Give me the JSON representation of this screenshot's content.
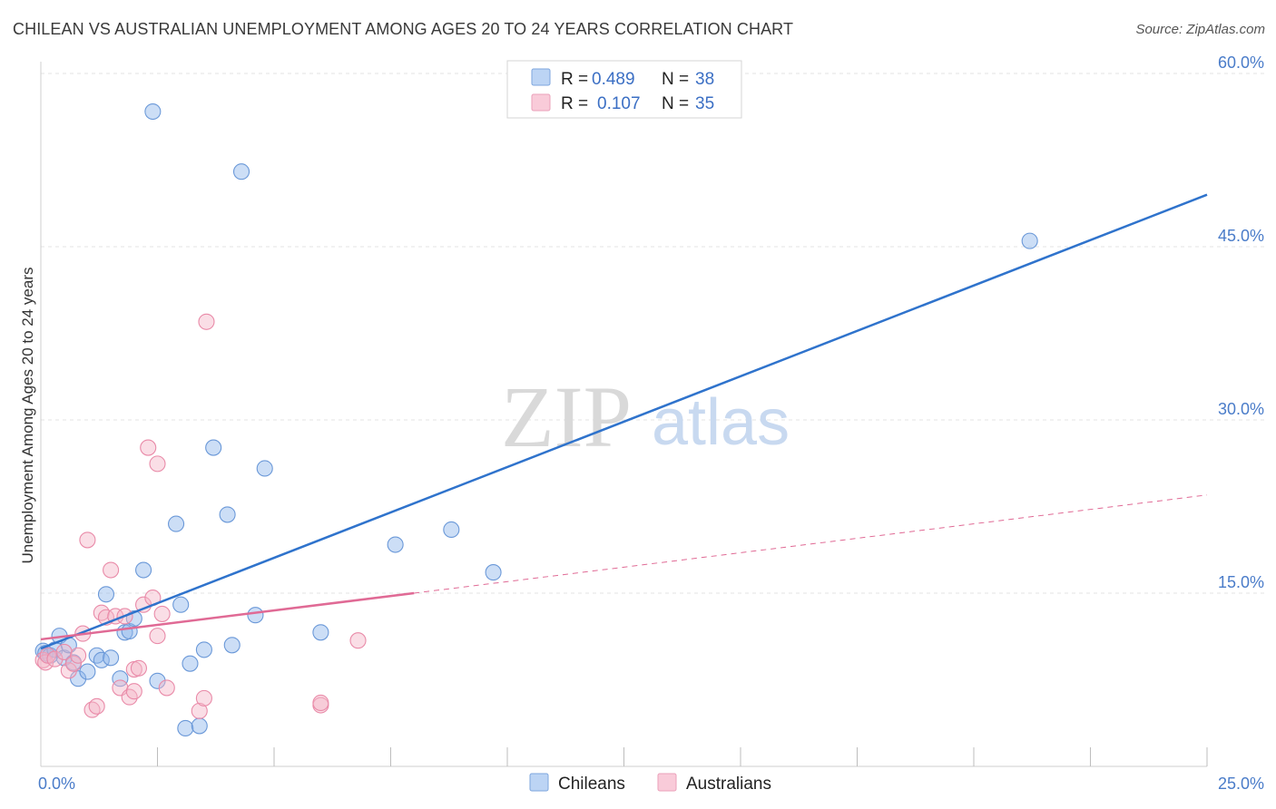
{
  "title": "CHILEAN VS AUSTRALIAN UNEMPLOYMENT AMONG AGES 20 TO 24 YEARS CORRELATION CHART",
  "source": "Source: ZipAtlas.com",
  "watermark": {
    "zip": "ZIP",
    "atlas": "atlas"
  },
  "legend": {
    "r_label": "R =",
    "n_label": "N =",
    "rows": [
      {
        "r": "0.489",
        "n": "38"
      },
      {
        "r": "0.107",
        "n": "35"
      }
    ]
  },
  "chart_data": {
    "type": "scatter",
    "title": "CHILEAN VS AUSTRALIAN UNEMPLOYMENT AMONG AGES 20 TO 24 YEARS CORRELATION CHART",
    "xlabel": "",
    "ylabel": "Unemployment Among Ages 20 to 24 years",
    "xlim": [
      0,
      25
    ],
    "ylim": [
      0,
      62
    ],
    "x_tick_labels": [
      {
        "v": 0,
        "label": "0.0%"
      },
      {
        "v": 25,
        "label": "25.0%"
      }
    ],
    "x_minor_ticks": [
      2.5,
      5,
      7.5,
      10,
      12.5,
      15,
      17.5,
      20,
      22.5,
      25
    ],
    "y_ticks": [
      {
        "v": 15,
        "label": "15.0%"
      },
      {
        "v": 30,
        "label": "30.0%"
      },
      {
        "v": 45,
        "label": "45.0%"
      },
      {
        "v": 60,
        "label": "60.0%"
      }
    ],
    "series": [
      {
        "name": "Chileans",
        "color": "#8fb5ea",
        "stroke": "#6a98d8",
        "line_color": "#2f73cc",
        "trend": {
          "x0": 0,
          "y0": 10.2,
          "x1": 25,
          "y1": 49.5,
          "dashed_from": null
        },
        "points": [
          [
            0.05,
            10.0
          ],
          [
            0.1,
            9.8
          ],
          [
            0.2,
            9.6
          ],
          [
            0.3,
            10.1
          ],
          [
            0.4,
            11.3
          ],
          [
            0.5,
            9.4
          ],
          [
            0.6,
            10.5
          ],
          [
            0.7,
            9.0
          ],
          [
            0.8,
            7.6
          ],
          [
            1.0,
            8.2
          ],
          [
            1.2,
            9.6
          ],
          [
            1.3,
            9.2
          ],
          [
            1.5,
            9.4
          ],
          [
            1.4,
            14.9
          ],
          [
            1.7,
            7.6
          ],
          [
            1.8,
            11.6
          ],
          [
            1.9,
            11.7
          ],
          [
            2.0,
            12.8
          ],
          [
            2.2,
            17.0
          ],
          [
            2.4,
            56.7
          ],
          [
            2.5,
            7.4
          ],
          [
            2.9,
            21.0
          ],
          [
            3.1,
            3.3
          ],
          [
            3.0,
            14.0
          ],
          [
            3.2,
            8.9
          ],
          [
            3.4,
            3.5
          ],
          [
            3.5,
            10.1
          ],
          [
            3.7,
            27.6
          ],
          [
            4.0,
            21.8
          ],
          [
            4.1,
            10.5
          ],
          [
            4.3,
            51.5
          ],
          [
            4.6,
            13.1
          ],
          [
            4.8,
            25.8
          ],
          [
            6.0,
            11.6
          ],
          [
            7.6,
            19.2
          ],
          [
            8.8,
            20.5
          ],
          [
            9.7,
            16.8
          ],
          [
            21.2,
            45.5
          ]
        ]
      },
      {
        "name": "Australians",
        "color": "#f4b6c8",
        "stroke": "#e98aa8",
        "line_color": "#e06a95",
        "trend": {
          "x0": 0,
          "y0": 11.0,
          "x1": 8.0,
          "y1": 15.0,
          "dashed_to_x": 25,
          "dashed_to_y": 23.5
        },
        "points": [
          [
            0.05,
            9.2
          ],
          [
            0.1,
            9.0
          ],
          [
            0.15,
            9.6
          ],
          [
            0.3,
            9.3
          ],
          [
            0.5,
            9.9
          ],
          [
            0.6,
            8.3
          ],
          [
            0.7,
            8.9
          ],
          [
            0.8,
            9.6
          ],
          [
            0.9,
            11.5
          ],
          [
            1.0,
            19.6
          ],
          [
            1.1,
            4.9
          ],
          [
            1.2,
            5.2
          ],
          [
            1.3,
            13.3
          ],
          [
            1.4,
            12.9
          ],
          [
            1.5,
            17.0
          ],
          [
            1.6,
            13.0
          ],
          [
            1.7,
            6.8
          ],
          [
            1.8,
            13.0
          ],
          [
            1.9,
            6.0
          ],
          [
            2.0,
            8.4
          ],
          [
            2.0,
            6.5
          ],
          [
            2.1,
            8.5
          ],
          [
            2.2,
            14.0
          ],
          [
            2.3,
            27.6
          ],
          [
            2.4,
            14.6
          ],
          [
            2.5,
            26.2
          ],
          [
            2.5,
            11.3
          ],
          [
            2.6,
            13.2
          ],
          [
            2.7,
            6.8
          ],
          [
            3.4,
            4.8
          ],
          [
            3.5,
            5.9
          ],
          [
            3.55,
            38.5
          ],
          [
            6.0,
            5.3
          ],
          [
            6.0,
            5.5
          ],
          [
            6.8,
            10.9
          ]
        ]
      }
    ]
  }
}
